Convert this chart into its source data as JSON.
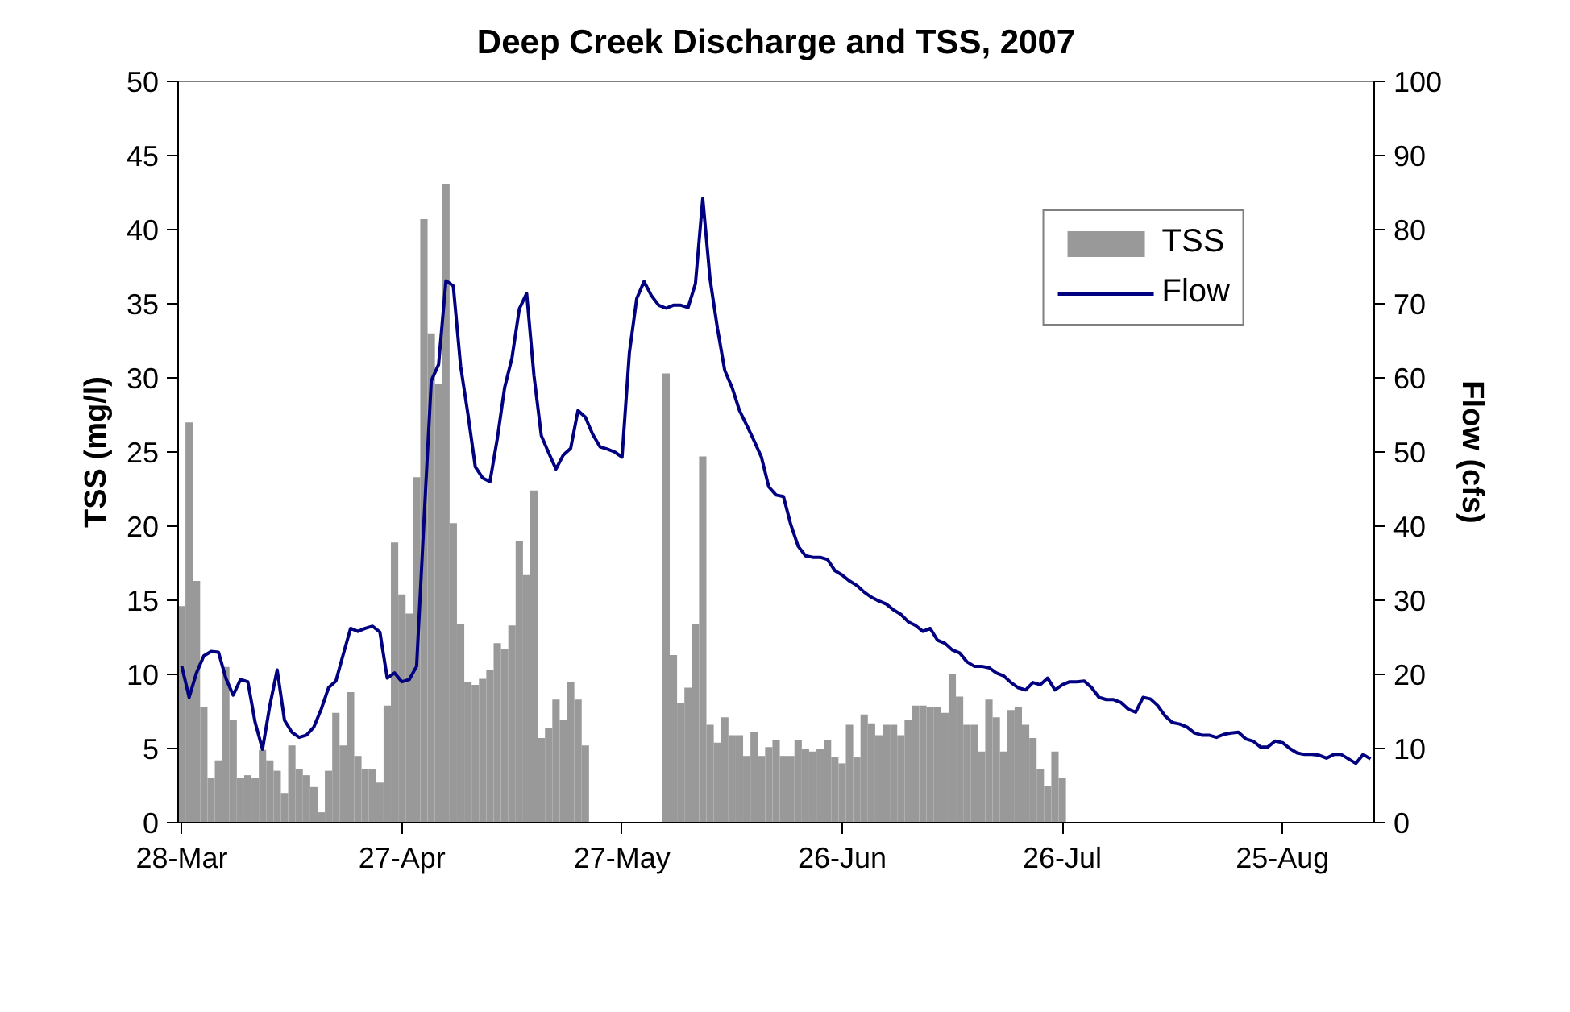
{
  "chart_data": {
    "type": "bar",
    "title": "Deep Creek Discharge and TSS, 2007",
    "ylabel": "TSS (mg/l)",
    "y2label": "Flow (cfs)",
    "x": [
      "2007-03-28",
      "2007-03-29",
      "2007-03-30",
      "2007-03-31",
      "2007-04-01",
      "2007-04-02",
      "2007-04-03",
      "2007-04-04",
      "2007-04-05",
      "2007-04-06",
      "2007-04-07",
      "2007-04-08",
      "2007-04-09",
      "2007-04-10",
      "2007-04-11",
      "2007-04-12",
      "2007-04-13",
      "2007-04-14",
      "2007-04-15",
      "2007-04-16",
      "2007-04-17",
      "2007-04-18",
      "2007-04-19",
      "2007-04-20",
      "2007-04-21",
      "2007-04-22",
      "2007-04-23",
      "2007-04-24",
      "2007-04-25",
      "2007-04-26",
      "2007-04-27",
      "2007-04-28",
      "2007-04-29",
      "2007-04-30",
      "2007-05-01",
      "2007-05-02",
      "2007-05-03",
      "2007-05-04",
      "2007-05-05",
      "2007-05-06",
      "2007-05-07",
      "2007-05-08",
      "2007-05-09",
      "2007-05-10",
      "2007-05-11",
      "2007-05-12",
      "2007-05-13",
      "2007-05-14",
      "2007-05-15",
      "2007-05-16",
      "2007-05-17",
      "2007-05-18",
      "2007-05-19",
      "2007-05-20",
      "2007-05-21",
      "2007-05-22",
      "2007-05-23",
      "2007-05-24",
      "2007-05-25",
      "2007-05-26",
      "2007-05-27",
      "2007-05-28",
      "2007-05-29",
      "2007-05-30",
      "2007-05-31",
      "2007-06-01",
      "2007-06-02",
      "2007-06-03",
      "2007-06-04",
      "2007-06-05",
      "2007-06-06",
      "2007-06-07",
      "2007-06-08",
      "2007-06-09",
      "2007-06-10",
      "2007-06-11",
      "2007-06-12",
      "2007-06-13",
      "2007-06-14",
      "2007-06-15",
      "2007-06-16",
      "2007-06-17",
      "2007-06-18",
      "2007-06-19",
      "2007-06-20",
      "2007-06-21",
      "2007-06-22",
      "2007-06-23",
      "2007-06-24",
      "2007-06-25",
      "2007-06-26",
      "2007-06-27",
      "2007-06-28",
      "2007-06-29",
      "2007-06-30",
      "2007-07-01",
      "2007-07-02",
      "2007-07-03",
      "2007-07-04",
      "2007-07-05",
      "2007-07-06",
      "2007-07-07",
      "2007-07-08",
      "2007-07-09",
      "2007-07-10",
      "2007-07-11",
      "2007-07-12",
      "2007-07-13",
      "2007-07-14",
      "2007-07-15",
      "2007-07-16",
      "2007-07-17",
      "2007-07-18",
      "2007-07-19",
      "2007-07-20",
      "2007-07-21",
      "2007-07-22",
      "2007-07-23",
      "2007-07-24",
      "2007-07-25",
      "2007-07-26",
      "2007-07-27",
      "2007-07-28",
      "2007-07-29",
      "2007-07-30",
      "2007-07-31",
      "2007-08-01",
      "2007-08-02",
      "2007-08-03",
      "2007-08-04",
      "2007-08-05",
      "2007-08-06",
      "2007-08-07",
      "2007-08-08",
      "2007-08-09",
      "2007-08-10",
      "2007-08-11",
      "2007-08-12",
      "2007-08-13",
      "2007-08-14",
      "2007-08-15",
      "2007-08-16",
      "2007-08-17",
      "2007-08-18",
      "2007-08-19",
      "2007-08-20",
      "2007-08-21",
      "2007-08-22",
      "2007-08-23",
      "2007-08-24",
      "2007-08-25",
      "2007-08-26",
      "2007-08-27",
      "2007-08-28",
      "2007-08-29",
      "2007-08-30",
      "2007-08-31",
      "2007-09-01",
      "2007-09-02",
      "2007-09-03",
      "2007-09-04",
      "2007-09-05",
      "2007-09-06"
    ],
    "series": [
      {
        "name": "TSS",
        "color": "#999999",
        "values": [
          14.6,
          27.0,
          16.3,
          7.8,
          3.0,
          4.2,
          10.5,
          6.9,
          3.0,
          3.2,
          3.0,
          4.9,
          4.2,
          3.5,
          2.0,
          5.2,
          3.6,
          3.2,
          2.4,
          0.7,
          3.5,
          7.4,
          5.2,
          8.8,
          4.5,
          3.6,
          3.6,
          2.7,
          7.9,
          18.9,
          15.4,
          14.1,
          23.3,
          40.7,
          33.0,
          29.6,
          43.1,
          20.2,
          13.4,
          9.5,
          9.3,
          9.7,
          10.3,
          12.1,
          11.7,
          13.3,
          19.0,
          16.7,
          22.4,
          5.7,
          6.4,
          8.3,
          6.9,
          9.5,
          8.3,
          5.2,
          null,
          null,
          null,
          null,
          null,
          null,
          null,
          null,
          null,
          null,
          30.3,
          11.3,
          8.1,
          9.1,
          13.4,
          24.7,
          6.6,
          5.4,
          7.1,
          5.9,
          5.9,
          4.5,
          6.1,
          4.5,
          5.1,
          5.6,
          4.5,
          4.5,
          5.6,
          5.0,
          4.8,
          5.0,
          5.6,
          4.4,
          4.0,
          6.6,
          4.4,
          7.3,
          6.7,
          5.9,
          6.6,
          6.6,
          5.9,
          6.9,
          7.9,
          7.9,
          7.8,
          7.8,
          7.4,
          10.0,
          8.5,
          6.6,
          6.6,
          4.8,
          8.3,
          7.1,
          4.8,
          7.6,
          7.8,
          6.6,
          5.7,
          3.6,
          2.5,
          4.8,
          3.0,
          null,
          null,
          null,
          null,
          null,
          null,
          null,
          null,
          null,
          null,
          null,
          null,
          null,
          null,
          null,
          null,
          null,
          null,
          null,
          null,
          null,
          null,
          null,
          null,
          null,
          null,
          null,
          null,
          null,
          null,
          null,
          null,
          null,
          null,
          null,
          null,
          null,
          null,
          null,
          null,
          null,
          null
        ]
      },
      {
        "name": "Flow",
        "type": "line",
        "axis": "y2",
        "color": "#000080",
        "values": [
          21.1,
          16.9,
          20.2,
          22.5,
          23.1,
          23.0,
          19.5,
          17.2,
          19.3,
          19.0,
          13.5,
          9.9,
          15.8,
          20.6,
          13.8,
          12.2,
          11.5,
          11.8,
          12.9,
          15.3,
          18.2,
          19.1,
          22.7,
          26.2,
          25.8,
          26.2,
          26.5,
          25.7,
          19.5,
          20.2,
          19.0,
          19.3,
          21.1,
          40.6,
          59.6,
          61.8,
          73.1,
          72.4,
          61.6,
          55.1,
          48.0,
          46.5,
          46.0,
          51.8,
          58.7,
          62.7,
          69.3,
          71.4,
          60.3,
          52.2,
          49.9,
          47.7,
          49.6,
          50.5,
          55.6,
          54.7,
          52.4,
          50.7,
          50.4,
          50.0,
          49.3,
          63.4,
          70.7,
          73.0,
          71.1,
          69.8,
          69.4,
          69.8,
          69.8,
          69.5,
          72.7,
          84.2,
          73.3,
          66.7,
          61.0,
          58.7,
          55.6,
          53.6,
          51.5,
          49.3,
          45.3,
          44.2,
          44.0,
          40.2,
          37.3,
          36.0,
          35.8,
          35.8,
          35.5,
          34.0,
          33.4,
          32.6,
          32.0,
          31.1,
          30.4,
          29.9,
          29.5,
          28.7,
          28.1,
          27.1,
          26.6,
          25.8,
          26.2,
          24.6,
          24.2,
          23.3,
          22.9,
          21.7,
          21.1,
          21.1,
          20.9,
          20.2,
          19.8,
          18.9,
          18.2,
          17.9,
          18.9,
          18.6,
          19.5,
          17.9,
          18.6,
          19.0,
          19.0,
          19.1,
          18.2,
          16.9,
          16.6,
          16.6,
          16.2,
          15.3,
          14.9,
          16.9,
          16.7,
          15.8,
          14.4,
          13.5,
          13.3,
          12.9,
          12.1,
          11.8,
          11.8,
          11.5,
          11.9,
          12.1,
          12.2,
          11.3,
          11.0,
          10.2,
          10.2,
          11.0,
          10.8,
          10.0,
          9.4,
          9.2,
          9.2,
          9.1,
          8.7,
          9.2,
          9.2,
          8.6,
          8.0,
          9.2,
          8.6
        ]
      }
    ],
    "xlim": [
      "2007-03-27T12:00",
      "2007-09-06T12:00"
    ],
    "xticks": [
      {
        "value": "2007-03-28",
        "label": "28-Mar"
      },
      {
        "value": "2007-04-27",
        "label": "27-Apr"
      },
      {
        "value": "2007-05-27",
        "label": "27-May"
      },
      {
        "value": "2007-06-26",
        "label": "26-Jun"
      },
      {
        "value": "2007-07-26",
        "label": "26-Jul"
      },
      {
        "value": "2007-08-25",
        "label": "25-Aug"
      }
    ],
    "ylim": [
      0,
      50
    ],
    "yticks": [
      0,
      5,
      10,
      15,
      20,
      25,
      30,
      35,
      40,
      45,
      50
    ],
    "y2lim": [
      0,
      100
    ],
    "y2ticks": [
      0,
      10,
      20,
      30,
      40,
      50,
      60,
      70,
      80,
      90,
      100
    ],
    "grid": false,
    "legend": "top right",
    "line_style": "solid",
    "marker": "none"
  }
}
